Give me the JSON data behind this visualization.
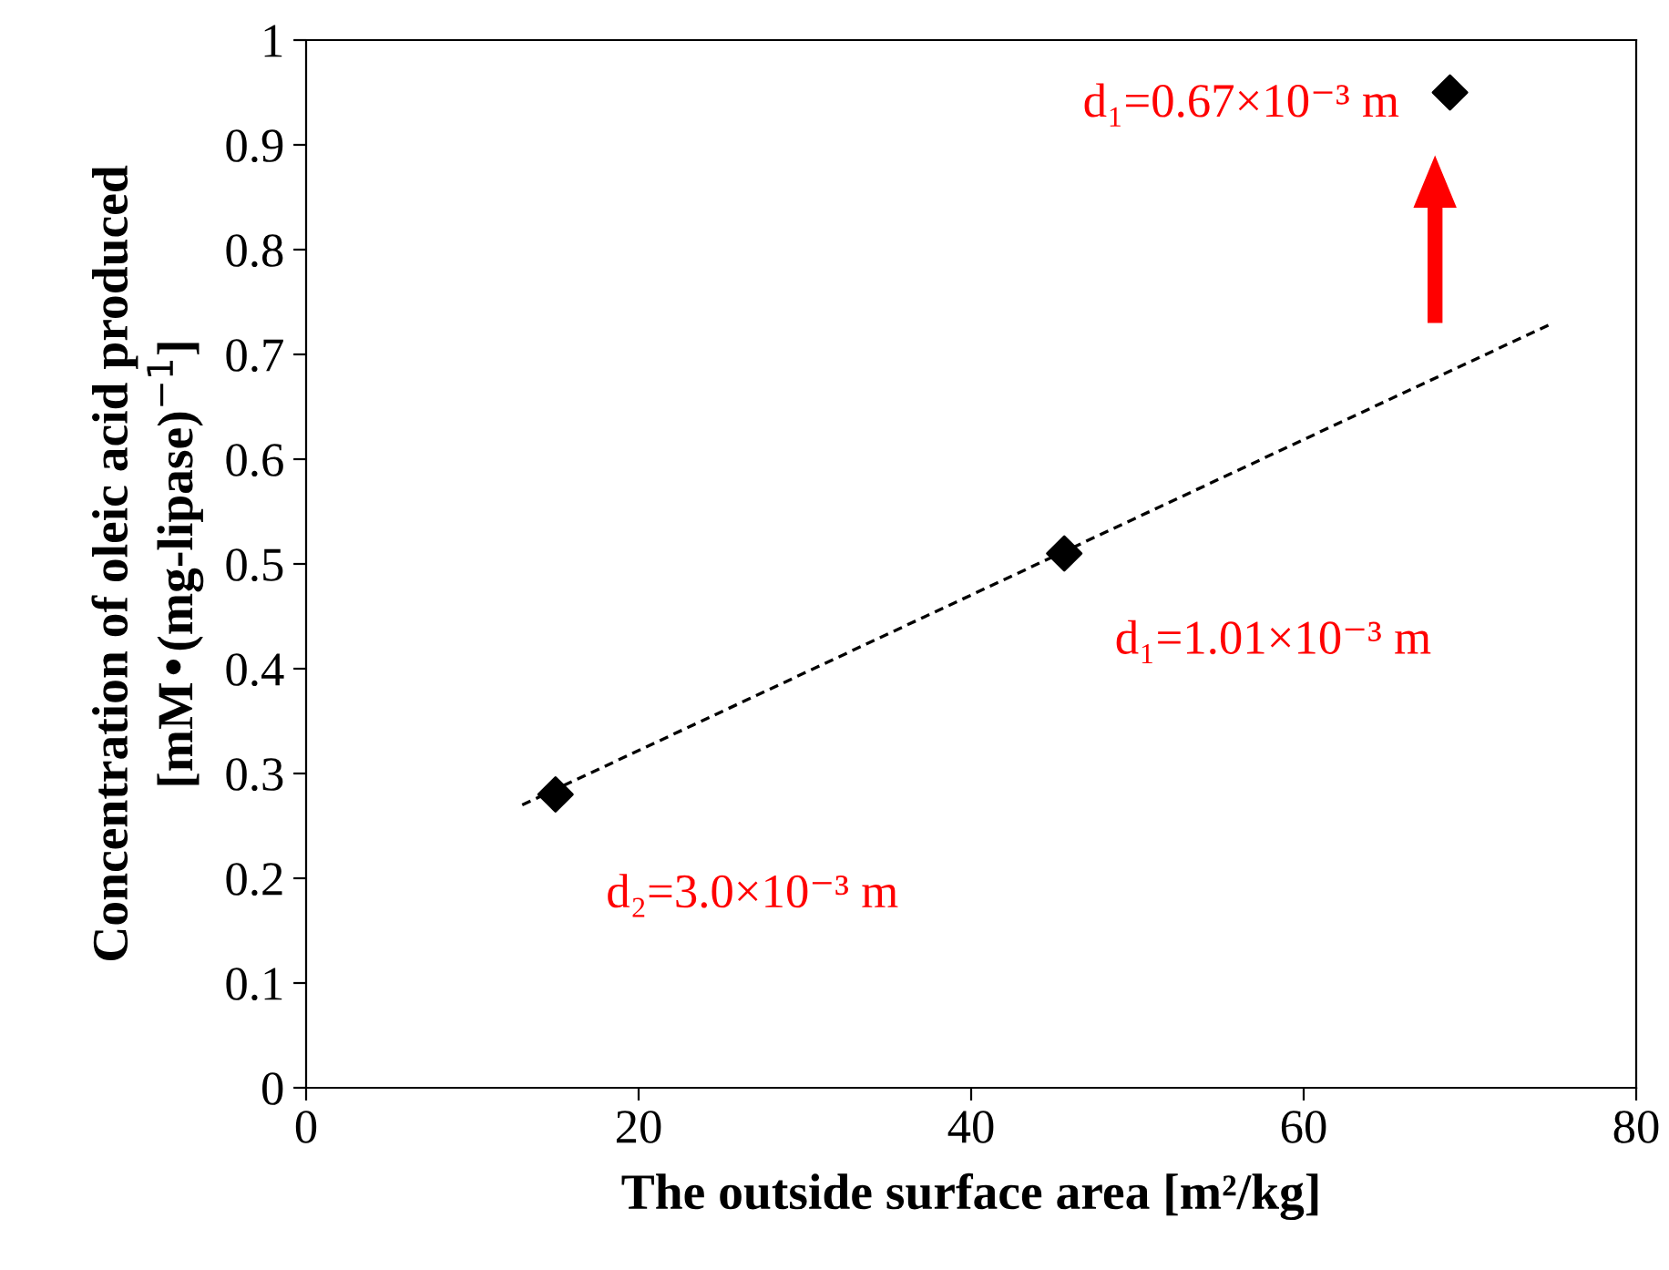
{
  "chart_data": {
    "type": "scatter",
    "xlabel": "The outside surface area [m²/kg]",
    "ylabel": "Concentration of oleic acid produced\n[mM•(mg-lipase)$^{−1}$]",
    "x": [
      15,
      45.6,
      68.8
    ],
    "series": [
      {
        "color": "#000000",
        "values": [
          0.28,
          0.51,
          0.95
        ],
        "marker": "diamond"
      },
      {
        "type": "line",
        "color": "#000000",
        "x": [
          13,
          75
        ],
        "values": [
          0.27,
          0.73
        ],
        "line_style": "dashed",
        "marker": "none"
      }
    ],
    "annotations": [
      {
        "text": "d₂=3.0×10⁻³ m",
        "x": 15,
        "y": 0.28
      },
      {
        "text": "d₁=1.01×10⁻³ m",
        "x": 45.6,
        "y": 0.51
      },
      {
        "text": "d₁=0.67×10⁻³ m",
        "x": 68.8,
        "y": 0.95
      }
    ],
    "xlim": [
      0,
      80
    ],
    "xticks": [
      0,
      20,
      40,
      60,
      80
    ],
    "ylim": [
      0,
      1
    ],
    "yticks": [
      0,
      0.1,
      0.2,
      0.3,
      0.4,
      0.5,
      0.6,
      0.7,
      0.8,
      0.9,
      1
    ],
    "grid": false
  }
}
